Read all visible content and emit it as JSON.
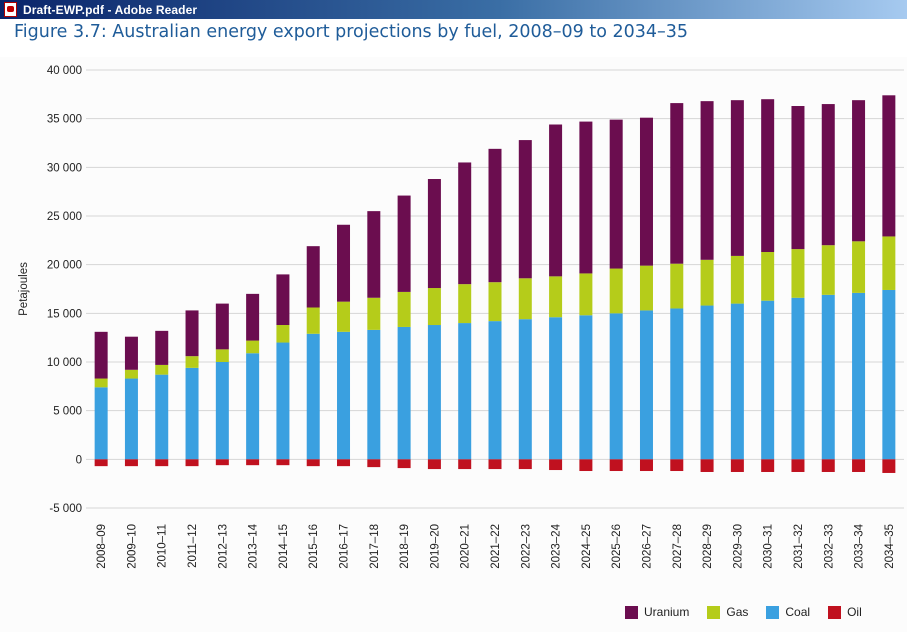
{
  "window": {
    "title": "Draft-EWP.pdf - Adobe Reader",
    "icon": "pdf-document-icon"
  },
  "figure": {
    "title": "Figure 3.7: Australian energy export projections by fuel, 2008–09 to 2034–35"
  },
  "chart_data": {
    "type": "bar",
    "stacked": true,
    "title": "Figure 3.7: Australian energy export projections by fuel, 2008–09 to 2034–35",
    "xlabel": "",
    "ylabel": "Petajoules",
    "ylim": [
      -5000,
      40000
    ],
    "yticks": [
      -5000,
      0,
      5000,
      10000,
      15000,
      20000,
      25000,
      30000,
      35000,
      40000
    ],
    "ytick_labels": [
      "-5 000",
      "0",
      "5 000",
      "10 000",
      "15 000",
      "20 000",
      "25 000",
      "30 000",
      "35 000",
      "40 000"
    ],
    "grid": true,
    "legend_position": "bottom-right",
    "categories": [
      "2008–09",
      "2009–10",
      "2010–11",
      "2011–12",
      "2012–13",
      "2013–14",
      "2014–15",
      "2015–16",
      "2016–17",
      "2017–18",
      "2018–19",
      "2019–20",
      "2020–21",
      "2021–22",
      "2022–23",
      "2023–24",
      "2024–25",
      "2025–26",
      "2026–27",
      "2027–28",
      "2028–29",
      "2029–30",
      "2030–31",
      "2031–32",
      "2032–33",
      "2033–34",
      "2034–35"
    ],
    "series": [
      {
        "name": "Uranium",
        "color": "#6b0d4f",
        "values": [
          4800,
          3400,
          3500,
          4700,
          4700,
          4800,
          5200,
          6300,
          7900,
          8900,
          9900,
          11200,
          12500,
          13700,
          14200,
          15600,
          15600,
          15300,
          15200,
          16500,
          16300,
          16000,
          15700,
          14700,
          14500,
          14500,
          14500
        ]
      },
      {
        "name": "Gas",
        "color": "#b5cc1a",
        "values": [
          900,
          900,
          1000,
          1200,
          1300,
          1300,
          1800,
          2700,
          3100,
          3300,
          3600,
          3800,
          4000,
          4000,
          4200,
          4200,
          4300,
          4600,
          4600,
          4600,
          4700,
          4900,
          5000,
          5000,
          5100,
          5300,
          5500
        ]
      },
      {
        "name": "Coal",
        "color": "#3aa0e0",
        "values": [
          7400,
          8300,
          8700,
          9400,
          10000,
          10900,
          12000,
          12900,
          13100,
          13300,
          13600,
          13800,
          14000,
          14200,
          14400,
          14600,
          14800,
          15000,
          15300,
          15500,
          15800,
          16000,
          16300,
          16600,
          16900,
          17100,
          17400
        ]
      },
      {
        "name": "Oil",
        "color": "#c0111f",
        "values": [
          -700,
          -700,
          -700,
          -700,
          -600,
          -600,
          -600,
          -700,
          -700,
          -800,
          -900,
          -1000,
          -1000,
          -1000,
          -1000,
          -1100,
          -1200,
          -1200,
          -1200,
          -1200,
          -1300,
          -1300,
          -1300,
          -1300,
          -1300,
          -1300,
          -1400
        ]
      }
    ]
  }
}
